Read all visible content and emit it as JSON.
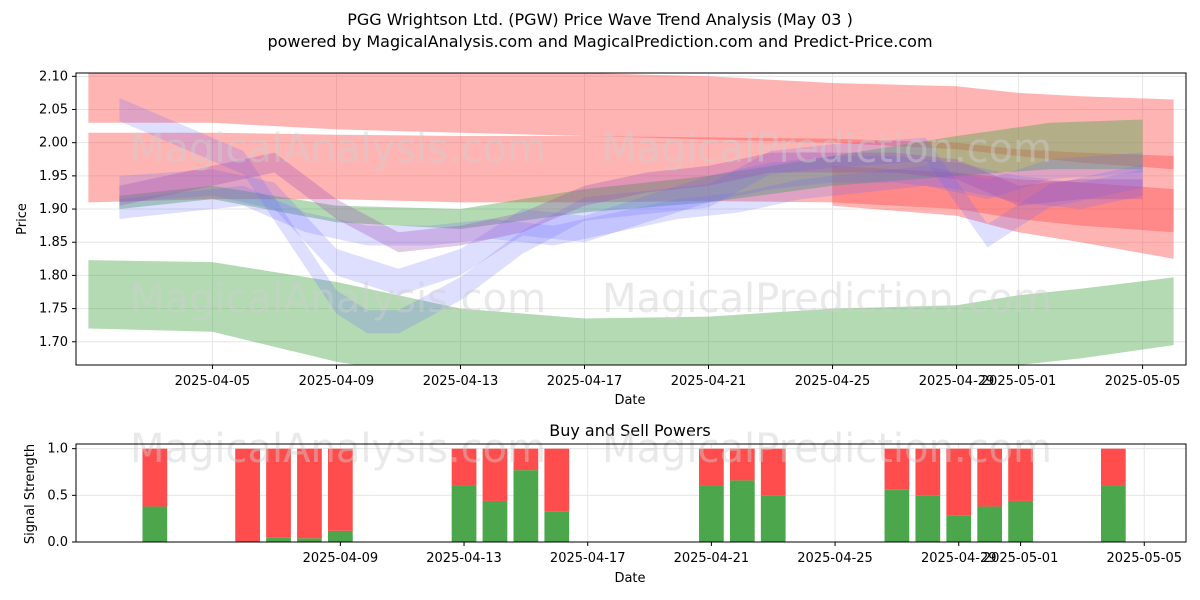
{
  "title_line1": "PGG Wrightson Ltd. (PGW) Price Wave Trend Analysis (May 03 )",
  "title_line2": "powered by MagicalAnalysis.com and MagicalPrediction.com and Predict-Price.com",
  "watermarks": [
    "MagicalAnalysis.com",
    "MagicalPrediction.com"
  ],
  "colors": {
    "red": "#ff4d4d",
    "green": "#4ca64c",
    "blue": "#6b6bff",
    "purple": "#9a4db3",
    "grid": "#e6e6e6"
  },
  "chart_data": [
    {
      "type": "area",
      "title": "",
      "xlabel": "Date",
      "ylabel": "Price",
      "x_range": [
        "2025-04-01",
        "2025-05-06"
      ],
      "ylim": [
        1.665,
        2.105
      ],
      "y_ticks": [
        1.7,
        1.75,
        1.8,
        1.85,
        1.9,
        1.95,
        2.0,
        2.05,
        2.1
      ],
      "y_tick_labels": [
        "1.70",
        "1.75",
        "1.80",
        "1.85",
        "1.90",
        "1.95",
        "2.00",
        "2.05",
        "2.10"
      ],
      "x_ticks": [
        "2025-04-05",
        "2025-04-09",
        "2025-04-13",
        "2025-04-17",
        "2025-04-21",
        "2025-04-25",
        "2025-04-29",
        "2025-05-01",
        "2025-05-05"
      ],
      "grid": true,
      "series": [
        {
          "color": "red",
          "x": [
            "2025-04-01",
            "2025-04-05",
            "2025-04-09",
            "2025-04-13",
            "2025-04-17",
            "2025-04-21",
            "2025-04-25",
            "2025-04-29",
            "2025-05-01",
            "2025-05-03",
            "2025-05-06"
          ],
          "upper": [
            2.12,
            2.12,
            2.115,
            2.11,
            2.105,
            2.1,
            2.09,
            2.085,
            2.075,
            2.07,
            2.065
          ],
          "lower": [
            2.03,
            2.03,
            2.02,
            2.015,
            2.01,
            2.005,
            2.0,
            1.99,
            1.98,
            1.97,
            1.96
          ]
        },
        {
          "color": "red",
          "x": [
            "2025-04-01",
            "2025-04-05",
            "2025-04-09",
            "2025-04-13",
            "2025-04-17",
            "2025-04-21",
            "2025-04-25",
            "2025-04-29",
            "2025-05-01",
            "2025-05-03",
            "2025-05-06"
          ],
          "upper": [
            2.015,
            2.015,
            2.012,
            2.01,
            2.01,
            2.008,
            2.006,
            2.0,
            1.99,
            1.985,
            1.98
          ],
          "lower": [
            1.91,
            1.915,
            1.915,
            1.91,
            1.91,
            1.912,
            1.91,
            1.9,
            1.885,
            1.875,
            1.865
          ]
        },
        {
          "color": "red",
          "x": [
            "2025-04-25",
            "2025-04-29",
            "2025-05-01",
            "2025-05-03",
            "2025-05-06"
          ],
          "upper": [
            1.965,
            1.955,
            1.945,
            1.94,
            1.93
          ],
          "lower": [
            1.905,
            1.89,
            1.865,
            1.85,
            1.825
          ]
        },
        {
          "color": "green",
          "x": [
            "2025-04-01",
            "2025-04-05",
            "2025-04-09",
            "2025-04-13",
            "2025-04-17",
            "2025-04-21",
            "2025-04-25",
            "2025-04-29",
            "2025-05-01",
            "2025-05-03",
            "2025-05-06"
          ],
          "upper": [
            1.823,
            1.82,
            1.79,
            1.75,
            1.735,
            1.738,
            1.75,
            1.755,
            1.77,
            1.78,
            1.797
          ],
          "lower": [
            1.72,
            1.715,
            1.67,
            1.64,
            1.63,
            1.632,
            1.64,
            1.65,
            1.665,
            1.675,
            1.695
          ]
        },
        {
          "color": "green",
          "x": [
            "2025-04-02",
            "2025-04-05",
            "2025-04-09",
            "2025-04-13",
            "2025-04-17",
            "2025-04-21",
            "2025-04-25",
            "2025-04-29",
            "2025-05-02",
            "2025-05-05"
          ],
          "upper": [
            1.92,
            1.935,
            1.905,
            1.9,
            1.93,
            1.95,
            1.98,
            2.01,
            2.03,
            2.035
          ],
          "lower": [
            1.9,
            1.915,
            1.88,
            1.87,
            1.895,
            1.91,
            1.935,
            1.95,
            1.96,
            1.96
          ]
        },
        {
          "color": "blue",
          "x": [
            "2025-04-02",
            "2025-04-06",
            "2025-04-07",
            "2025-04-09",
            "2025-04-10",
            "2025-04-11",
            "2025-04-13",
            "2025-04-15",
            "2025-04-17",
            "2025-04-21",
            "2025-04-23",
            "2025-04-25",
            "2025-04-28",
            "2025-04-30",
            "2025-05-02",
            "2025-05-05"
          ],
          "center": [
            2.05,
            1.97,
            1.9,
            1.76,
            1.73,
            1.73,
            1.78,
            1.85,
            1.9,
            1.92,
            1.97,
            1.98,
            1.99,
            1.86,
            1.92,
            1.95
          ],
          "width": 0.035
        },
        {
          "color": "blue",
          "x": [
            "2025-04-02",
            "2025-04-06",
            "2025-04-08",
            "2025-04-10",
            "2025-04-12",
            "2025-04-14",
            "2025-04-16",
            "2025-04-18",
            "2025-04-20",
            "2025-04-22",
            "2025-04-24",
            "2025-04-26",
            "2025-04-28",
            "2025-04-30",
            "2025-05-02",
            "2025-05-05"
          ],
          "center": [
            1.9,
            1.92,
            1.88,
            1.86,
            1.86,
            1.87,
            1.86,
            1.88,
            1.9,
            1.91,
            1.93,
            1.94,
            1.95,
            1.93,
            1.96,
            1.97
          ],
          "width": 0.03
        },
        {
          "color": "blue",
          "x": [
            "2025-04-02",
            "2025-04-05",
            "2025-04-07",
            "2025-04-09",
            "2025-04-11",
            "2025-04-13",
            "2025-04-15",
            "2025-04-17",
            "2025-04-19",
            "2025-04-21",
            "2025-04-23",
            "2025-04-25",
            "2025-04-27",
            "2025-04-29",
            "2025-05-01",
            "2025-05-03",
            "2025-05-05"
          ],
          "center": [
            1.93,
            1.94,
            1.92,
            1.82,
            1.79,
            1.82,
            1.88,
            1.87,
            1.9,
            1.93,
            1.95,
            1.96,
            1.96,
            1.95,
            1.93,
            1.92,
            1.94
          ],
          "width": 0.04
        },
        {
          "color": "purple",
          "x": [
            "2025-04-02",
            "2025-04-05",
            "2025-04-07",
            "2025-04-09",
            "2025-04-11",
            "2025-04-13",
            "2025-04-15",
            "2025-04-17",
            "2025-04-19",
            "2025-04-21",
            "2025-04-23",
            "2025-04-25",
            "2025-04-27",
            "2025-04-29",
            "2025-05-01",
            "2025-05-03",
            "2025-05-05"
          ],
          "center": [
            1.92,
            1.95,
            1.97,
            1.9,
            1.85,
            1.86,
            1.88,
            1.92,
            1.94,
            1.95,
            1.97,
            1.97,
            1.97,
            1.96,
            1.92,
            1.93,
            1.93
          ],
          "width": 0.03
        }
      ]
    },
    {
      "type": "bar",
      "title": "Buy and Sell Powers",
      "xlabel": "Date",
      "ylabel": "Signal Strength",
      "ylim": [
        0,
        1.05
      ],
      "y_ticks": [
        0.0,
        0.5,
        1.0
      ],
      "y_tick_labels": [
        "0.0",
        "0.5",
        "1.0"
      ],
      "x_range": [
        "2025-04-01",
        "2025-05-06"
      ],
      "x_ticks": [
        "2025-04-09",
        "2025-04-13",
        "2025-04-17",
        "2025-04-21",
        "2025-04-25",
        "2025-04-29",
        "2025-05-01",
        "2025-05-05"
      ],
      "grid": true,
      "bars": [
        {
          "date": "2025-04-03",
          "buy": 0.38,
          "sell": 0.62
        },
        {
          "date": "2025-04-06",
          "buy": 0.0,
          "sell": 1.0
        },
        {
          "date": "2025-04-07",
          "buy": 0.05,
          "sell": 0.95
        },
        {
          "date": "2025-04-08",
          "buy": 0.04,
          "sell": 0.96
        },
        {
          "date": "2025-04-09",
          "buy": 0.12,
          "sell": 0.88
        },
        {
          "date": "2025-04-13",
          "buy": 0.61,
          "sell": 0.39
        },
        {
          "date": "2025-04-14",
          "buy": 0.44,
          "sell": 0.56
        },
        {
          "date": "2025-04-15",
          "buy": 0.77,
          "sell": 0.23
        },
        {
          "date": "2025-04-16",
          "buy": 0.33,
          "sell": 0.67
        },
        {
          "date": "2025-04-21",
          "buy": 0.61,
          "sell": 0.39
        },
        {
          "date": "2025-04-22",
          "buy": 0.66,
          "sell": 0.34
        },
        {
          "date": "2025-04-23",
          "buy": 0.5,
          "sell": 0.5
        },
        {
          "date": "2025-04-27",
          "buy": 0.56,
          "sell": 0.44
        },
        {
          "date": "2025-04-28",
          "buy": 0.5,
          "sell": 0.5
        },
        {
          "date": "2025-04-29",
          "buy": 0.28,
          "sell": 0.72
        },
        {
          "date": "2025-04-30",
          "buy": 0.38,
          "sell": 0.62
        },
        {
          "date": "2025-05-01",
          "buy": 0.44,
          "sell": 0.56
        },
        {
          "date": "2025-05-04",
          "buy": 0.61,
          "sell": 0.39
        }
      ]
    }
  ]
}
